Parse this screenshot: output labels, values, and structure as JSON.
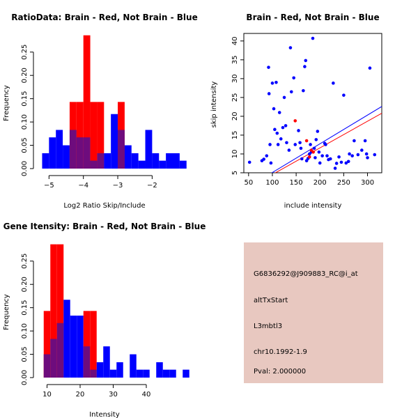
{
  "colors": {
    "red": "#ff0000",
    "blue": "#0000ff",
    "overlap": "#6e0c7d",
    "info_bg": "#e8c8c0",
    "pval": "#b00000",
    "axis": "#000000"
  },
  "chart_data": [
    {
      "id": "ratio",
      "type": "bar",
      "title": "RatioData: Brain - Red, Not Brain - Blue",
      "xlabel": "Log2 Ratio Skip/Include",
      "ylabel": "Frequency",
      "xlim": [
        -5.25,
        -1.4
      ],
      "ylim": [
        0,
        0.29
      ],
      "xticks": [
        -5,
        -4,
        -3,
        -2
      ],
      "yticks": [
        0.0,
        0.05,
        0.1,
        0.15,
        0.2,
        0.25
      ],
      "ytick_labels": [
        "0.00",
        "0.05",
        "0.10",
        "0.15",
        "0.20",
        "0.25"
      ],
      "bin_start": -5.2,
      "bin_width": 0.2,
      "series": [
        {
          "name": "Not Brain",
          "color": "blue",
          "values": [
            0.033,
            0.067,
            0.083,
            0.05,
            0.083,
            0.067,
            0.067,
            0.017,
            0.033,
            0.033,
            0.117,
            0.083,
            0.05,
            0.033,
            0.017,
            0.083,
            0.033,
            0.017,
            0.033,
            0.033,
            0.017
          ]
        },
        {
          "name": "Brain",
          "color": "red",
          "values": [
            0,
            0,
            0,
            0,
            0.143,
            0.143,
            0.286,
            0.143,
            0.143,
            0,
            0,
            0.143,
            0,
            0,
            0,
            0,
            0,
            0,
            0,
            0,
            0
          ]
        }
      ]
    },
    {
      "id": "scatter",
      "type": "scatter",
      "title": "Brain - Red, Not Brain - Blue",
      "xlabel": "include intensity",
      "ylabel": "skip intensity",
      "xlim": [
        40,
        330
      ],
      "ylim": [
        5,
        42
      ],
      "xticks": [
        50,
        100,
        150,
        200,
        250,
        300
      ],
      "yticks": [
        5,
        10,
        15,
        20,
        25,
        30,
        35,
        40
      ],
      "series": [
        {
          "name": "Not Brain",
          "color": "blue",
          "points": [
            [
              52,
              7.8
            ],
            [
              78,
              8.2
            ],
            [
              82,
              8.6
            ],
            [
              88,
              9.5
            ],
            [
              92,
              33
            ],
            [
              93,
              26
            ],
            [
              95,
              12.5
            ],
            [
              97,
              7.6
            ],
            [
              100,
              28.8
            ],
            [
              103,
              22
            ],
            [
              105,
              16.5
            ],
            [
              108,
              29
            ],
            [
              110,
              15.5
            ],
            [
              112,
              12.5
            ],
            [
              115,
              21
            ],
            [
              118,
              14
            ],
            [
              122,
              17
            ],
            [
              125,
              25
            ],
            [
              128,
              17.5
            ],
            [
              130,
              13
            ],
            [
              135,
              11
            ],
            [
              138,
              38.2
            ],
            [
              140,
              26.5
            ],
            [
              145,
              30.2
            ],
            [
              148,
              12.5
            ],
            [
              155,
              16.2
            ],
            [
              158,
              13
            ],
            [
              160,
              11.5
            ],
            [
              162,
              8.7
            ],
            [
              165,
              26.8
            ],
            [
              168,
              33.2
            ],
            [
              170,
              34.8
            ],
            [
              172,
              8.2
            ],
            [
              175,
              8.8
            ],
            [
              178,
              10
            ],
            [
              180,
              12.5
            ],
            [
              182,
              10.5
            ],
            [
              185,
              40.7
            ],
            [
              188,
              11.5
            ],
            [
              190,
              9
            ],
            [
              192,
              13.8
            ],
            [
              195,
              16
            ],
            [
              198,
              10.5
            ],
            [
              200,
              7.6
            ],
            [
              205,
              9.5
            ],
            [
              210,
              12.8
            ],
            [
              212,
              12.5
            ],
            [
              215,
              9.5
            ],
            [
              218,
              8.5
            ],
            [
              222,
              8.7
            ],
            [
              228,
              28.8
            ],
            [
              232,
              6.2
            ],
            [
              235,
              7.5
            ],
            [
              240,
              9.2
            ],
            [
              245,
              7.8
            ],
            [
              250,
              25.6
            ],
            [
              255,
              7.6
            ],
            [
              260,
              8
            ],
            [
              262,
              10
            ],
            [
              268,
              9.5
            ],
            [
              272,
              13.5
            ],
            [
              280,
              9.8
            ],
            [
              288,
              11
            ],
            [
              295,
              13.5
            ],
            [
              298,
              10
            ],
            [
              300,
              9
            ],
            [
              305,
              32.8
            ],
            [
              315,
              9.8
            ]
          ]
        },
        {
          "name": "Brain",
          "color": "red",
          "points": [
            [
              148,
              18.8
            ],
            [
              172,
              13.5
            ],
            [
              178,
              9.2
            ],
            [
              182,
              11
            ],
            [
              186,
              10.5
            ]
          ]
        }
      ],
      "fit_lines": [
        {
          "name": "Not Brain fit",
          "color": "blue",
          "from": [
            40,
            0.5
          ],
          "to": [
            330,
            22.6
          ]
        },
        {
          "name": "Brain fit",
          "color": "red",
          "from": [
            40,
            0.3
          ],
          "to": [
            330,
            20.8
          ]
        }
      ]
    },
    {
      "id": "gene",
      "type": "bar",
      "title": "Gene Itensity: Brain - Red, Not Brain - Blue",
      "xlabel": "Intensity",
      "ylabel": "Frequency",
      "xlim": [
        8,
        48
      ],
      "ylim": [
        0,
        0.29
      ],
      "xticks": [
        10,
        20,
        30,
        40
      ],
      "yticks": [
        0.0,
        0.05,
        0.1,
        0.15,
        0.2,
        0.25
      ],
      "ytick_labels": [
        "0.00",
        "0.05",
        "0.10",
        "0.15",
        "0.20",
        "0.25"
      ],
      "bin_start": 9,
      "bin_width": 2,
      "series": [
        {
          "name": "Not Brain",
          "color": "blue",
          "values": [
            0.05,
            0.083,
            0.117,
            0.167,
            0.133,
            0.133,
            0.067,
            0.017,
            0.033,
            0.067,
            0.017,
            0.033,
            0,
            0.05,
            0.017,
            0.017,
            0,
            0.033,
            0.017,
            0.017,
            0,
            0.017
          ]
        },
        {
          "name": "Brain",
          "color": "red",
          "values": [
            0.143,
            0.286,
            0.286,
            0,
            0,
            0,
            0.143,
            0.143,
            0,
            0,
            0,
            0,
            0,
            0,
            0,
            0,
            0,
            0,
            0,
            0,
            0,
            0
          ]
        }
      ]
    }
  ],
  "info_box": {
    "probe_id": "G6836292@J909883_RC@i_at",
    "event_type": "altTxStart",
    "gene_name": "L3mbtl3",
    "location": "chr10.1992-1.9",
    "pval": "Pval: 2.000000"
  }
}
